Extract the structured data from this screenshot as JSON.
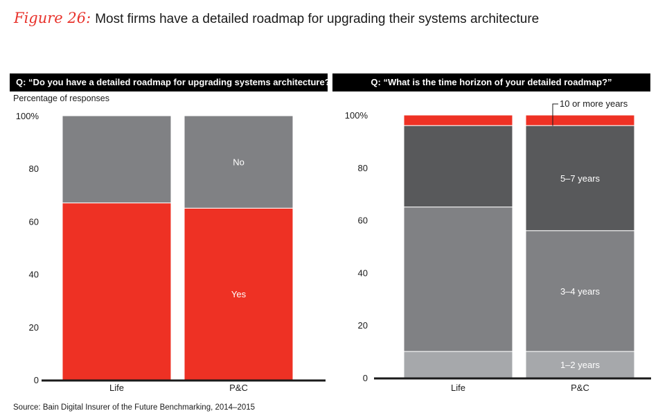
{
  "figure": {
    "label": "Figure 26:",
    "title": "Most firms have a detailed roadmap for upgrading their systems architecture"
  },
  "left_question": "Q: “Do you have a detailed roadmap for upgrading systems architecture?”",
  "right_question": "Q: “What is the time horizon of your detailed roadmap?”",
  "y_axis_label": "Percentage of responses",
  "source": "Source: Bain Digital Insurer of the Future Benchmarking, 2014–2015",
  "colors": {
    "yes": "#ee3124",
    "no": "#808184",
    "h_1_2": "#a6a8ab",
    "h_3_4": "#808184",
    "h_5_7": "#58595b",
    "h_10": "#ee3124"
  },
  "chart_data": [
    {
      "type": "bar",
      "stacked": true,
      "title": "Q: “Do you have a detailed roadmap for upgrading systems architecture?”",
      "ylabel": "Percentage of responses",
      "ylim": [
        0,
        100
      ],
      "yticks": [
        "0",
        "20",
        "40",
        "60",
        "80",
        "100%"
      ],
      "categories": [
        "Life",
        "P&C"
      ],
      "series": [
        {
          "name": "Yes",
          "key": "yes",
          "values": [
            67,
            65
          ]
        },
        {
          "name": "No",
          "key": "no",
          "values": [
            33,
            35
          ]
        }
      ]
    },
    {
      "type": "bar",
      "stacked": true,
      "title": "Q: “What is the time horizon of your detailed roadmap?”",
      "ylim": [
        0,
        100
      ],
      "yticks": [
        "0",
        "20",
        "40",
        "60",
        "80",
        "100%"
      ],
      "categories": [
        "Life",
        "P&C"
      ],
      "series": [
        {
          "name": "1–2 years",
          "key": "h_1_2",
          "values": [
            10,
            10
          ]
        },
        {
          "name": "3–4 years",
          "key": "h_3_4",
          "values": [
            55,
            46
          ]
        },
        {
          "name": "5–7 years",
          "key": "h_5_7",
          "values": [
            31,
            40
          ]
        },
        {
          "name": "10 or more years",
          "key": "h_10",
          "values": [
            4,
            4
          ]
        }
      ]
    }
  ]
}
